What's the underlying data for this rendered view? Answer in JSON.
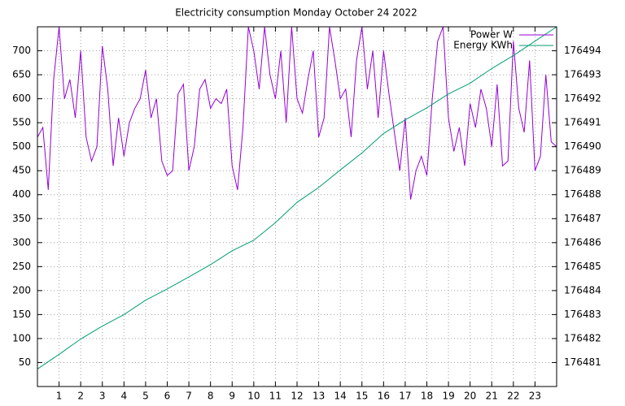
{
  "chart_data": {
    "type": "line",
    "title": "Electricity consumption Monday October 24 2022",
    "xlim": [
      0,
      24
    ],
    "xticks": [
      1,
      2,
      3,
      4,
      5,
      6,
      7,
      8,
      9,
      10,
      11,
      12,
      13,
      14,
      15,
      16,
      17,
      18,
      19,
      20,
      21,
      22,
      23
    ],
    "ylim": [
      0,
      750
    ],
    "yticks": [
      50,
      100,
      150,
      200,
      250,
      300,
      350,
      400,
      450,
      500,
      550,
      600,
      650,
      700
    ],
    "y2lim": [
      176480,
      176495
    ],
    "y2ticks": [
      176481,
      176482,
      176483,
      176484,
      176485,
      176486,
      176487,
      176488,
      176489,
      176490,
      176491,
      176492,
      176493,
      176494
    ],
    "grid": true,
    "legend": "top-right",
    "series": [
      {
        "name": "Power W",
        "color": "#9400d3",
        "x": [
          0,
          0.25,
          0.5,
          0.75,
          1,
          1.25,
          1.5,
          1.75,
          2,
          2.25,
          2.5,
          2.75,
          3,
          3.25,
          3.5,
          3.75,
          4,
          4.25,
          4.5,
          4.75,
          5,
          5.25,
          5.5,
          5.75,
          6,
          6.25,
          6.5,
          6.75,
          7,
          7.25,
          7.5,
          7.75,
          8,
          8.25,
          8.5,
          8.75,
          9,
          9.25,
          9.5,
          9.75,
          10,
          10.25,
          10.5,
          10.75,
          11,
          11.25,
          11.5,
          11.75,
          12,
          12.25,
          12.5,
          12.75,
          13,
          13.25,
          13.5,
          13.75,
          14,
          14.25,
          14.5,
          14.75,
          15,
          15.25,
          15.5,
          15.75,
          16,
          16.25,
          16.5,
          16.75,
          17,
          17.25,
          17.5,
          17.75,
          18,
          18.25,
          18.5,
          18.75,
          19,
          19.25,
          19.5,
          19.75,
          20,
          20.25,
          20.5,
          20.75,
          21,
          21.25,
          21.5,
          21.75,
          22,
          22.25,
          22.5,
          22.75,
          23,
          23.25,
          23.5,
          23.75,
          24
        ],
        "values": [
          520,
          540,
          410,
          640,
          750,
          600,
          640,
          560,
          700,
          520,
          470,
          500,
          710,
          620,
          460,
          560,
          480,
          550,
          580,
          600,
          660,
          560,
          600,
          470,
          440,
          450,
          610,
          630,
          450,
          500,
          620,
          640,
          580,
          600,
          590,
          620,
          460,
          410,
          540,
          750,
          700,
          620,
          750,
          650,
          600,
          700,
          550,
          750,
          600,
          570,
          640,
          700,
          520,
          560,
          750,
          680,
          600,
          620,
          520,
          680,
          750,
          620,
          700,
          560,
          700,
          610,
          530,
          450,
          560,
          390,
          450,
          480,
          440,
          600,
          720,
          750,
          560,
          490,
          540,
          460,
          590,
          540,
          620,
          580,
          500,
          630,
          460,
          470,
          720,
          580,
          530,
          680,
          450,
          480,
          650,
          510,
          500
        ]
      },
      {
        "name": "Energy KWh",
        "color": "#009e73",
        "axis": "y2",
        "x": [
          0,
          1,
          2,
          3,
          4,
          5,
          6,
          7,
          8,
          9,
          10,
          11,
          12,
          13,
          14,
          15,
          16,
          17,
          18,
          19,
          20,
          21,
          22,
          23,
          24
        ],
        "values": [
          176480.73,
          176481.34,
          176481.98,
          176482.52,
          176483.0,
          176483.6,
          176484.07,
          176484.57,
          176485.08,
          176485.66,
          176486.1,
          176486.83,
          176487.68,
          176488.3,
          176489.03,
          176489.74,
          176490.55,
          176491.12,
          176491.62,
          176492.2,
          176492.65,
          176493.26,
          176493.8,
          176494.4,
          176495
        ]
      }
    ]
  }
}
